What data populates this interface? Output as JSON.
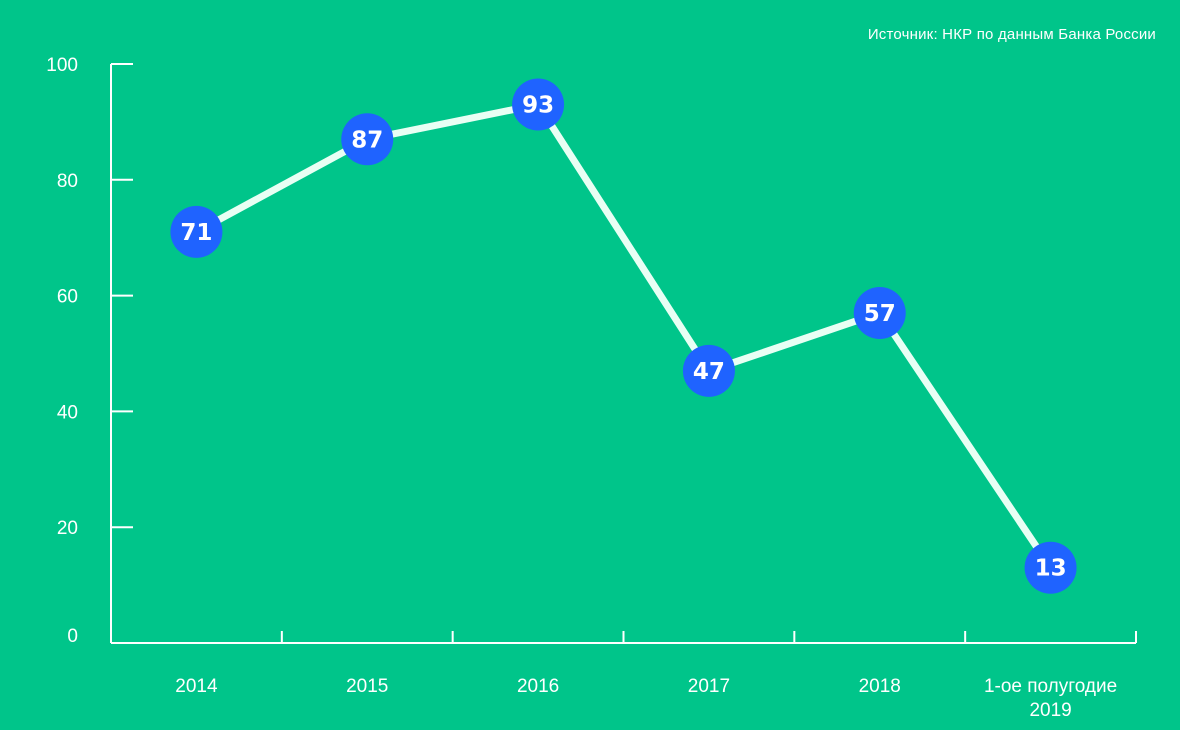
{
  "source": "Источник: НКР по данным Банка России",
  "colors": {
    "background": "#00C58A",
    "line": "#E8FFF4",
    "axis": "#FFFFFF",
    "marker": "#1F63FF",
    "text": "#FFFFFF"
  },
  "chart_data": {
    "type": "line",
    "categories": [
      "2014",
      "2015",
      "2016",
      "2017",
      "2018",
      "1-ое полугодие 2019"
    ],
    "values": [
      71,
      87,
      93,
      47,
      57,
      13
    ],
    "y_ticks": [
      0,
      20,
      40,
      60,
      80,
      100
    ],
    "ylim": [
      0,
      100
    ],
    "title": "",
    "xlabel": "",
    "ylabel": "",
    "grid": false
  }
}
